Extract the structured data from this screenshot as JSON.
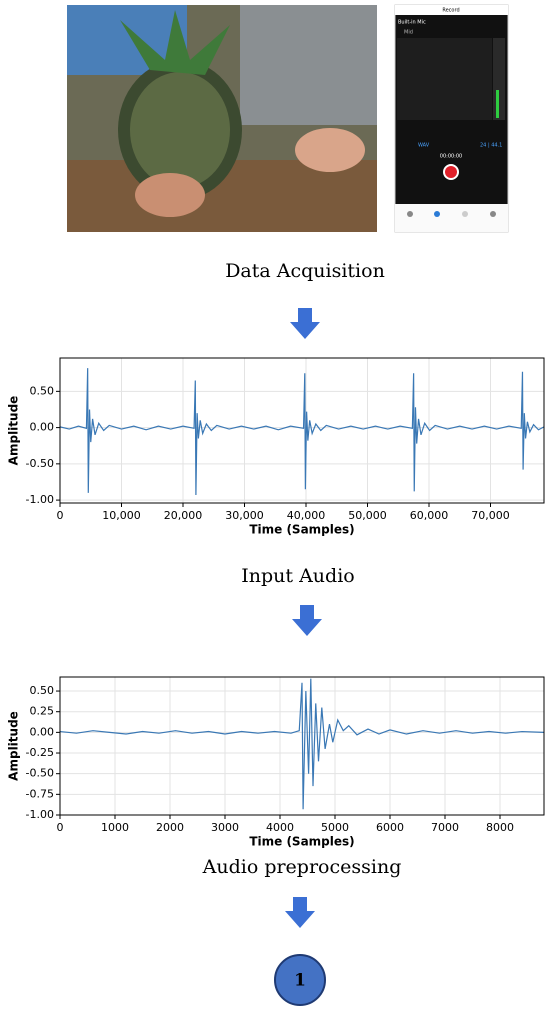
{
  "phone": {
    "title": "Record",
    "input": "Built-in Mic",
    "channel": "Mid",
    "format": "WAV",
    "rate": "24 | 44.1",
    "timer": "00:00:00"
  },
  "stages": [
    "Data Acquisition",
    "Input Audio",
    "Audio preprocessing"
  ],
  "step": "1",
  "chart_data": [
    {
      "type": "line",
      "xlabel": "Time (Samples)",
      "ylabel": "Amplitude",
      "grid": true,
      "xlim": [
        0,
        78700
      ],
      "ylim": [
        -1.04,
        0.96
      ],
      "xticks": [
        0,
        {
          "value": 10000,
          "label": "10,000"
        },
        {
          "value": 20000,
          "label": "20,000"
        },
        {
          "value": 30000,
          "label": "30,000"
        },
        {
          "value": 40000,
          "label": "40,000"
        },
        {
          "value": 50000,
          "label": "50,000"
        },
        {
          "value": 60000,
          "label": "60,000"
        },
        {
          "value": 70000,
          "label": "70,000"
        }
      ],
      "yticks": [
        {
          "value": -1,
          "label": "-1.00"
        },
        {
          "value": -0.5,
          "label": "-0.50"
        },
        {
          "value": 0,
          "label": "0.00"
        },
        {
          "value": 0.5,
          "label": "0.50"
        }
      ],
      "x": [
        0,
        1500,
        3000,
        4300,
        4500,
        4600,
        4800,
        5000,
        5300,
        5700,
        6300,
        7100,
        8000,
        10000,
        12000,
        14000,
        16000,
        18000,
        20000,
        21800,
        22000,
        22100,
        22300,
        22500,
        22800,
        23200,
        23800,
        24600,
        25500,
        27500,
        29500,
        31500,
        33500,
        35500,
        37500,
        39600,
        39800,
        39900,
        40100,
        40300,
        40600,
        41000,
        41600,
        42400,
        43300,
        45300,
        47300,
        49300,
        51300,
        53300,
        55300,
        57300,
        57500,
        57600,
        57800,
        58000,
        58300,
        58700,
        59300,
        60100,
        61000,
        63000,
        65000,
        67000,
        69000,
        71000,
        73000,
        75000,
        75200,
        75300,
        75500,
        75700,
        76000,
        76400,
        77000,
        77800,
        78700
      ],
      "series": [
        {
          "color": "#3a78b5",
          "values": [
            0.01,
            -0.02,
            0.02,
            -0.01,
            0.82,
            -0.9,
            0.25,
            -0.2,
            0.12,
            -0.1,
            0.06,
            -0.04,
            0.03,
            -0.02,
            0.02,
            -0.03,
            0.02,
            -0.02,
            0.02,
            -0.01,
            0.65,
            -0.93,
            0.2,
            -0.15,
            0.1,
            -0.08,
            0.05,
            -0.04,
            0.03,
            -0.02,
            0.02,
            -0.02,
            0.02,
            -0.03,
            0.02,
            -0.01,
            0.75,
            -0.85,
            0.22,
            -0.18,
            0.1,
            -0.08,
            0.05,
            -0.04,
            0.03,
            -0.02,
            0.02,
            -0.02,
            0.02,
            -0.02,
            0.02,
            -0.01,
            0.75,
            -0.88,
            0.28,
            -0.22,
            0.12,
            -0.1,
            0.06,
            -0.04,
            0.03,
            -0.02,
            0.02,
            -0.02,
            0.02,
            -0.02,
            0.02,
            -0.01,
            0.77,
            -0.58,
            0.2,
            -0.15,
            0.08,
            -0.06,
            0.04,
            -0.03,
            0.01
          ]
        }
      ]
    },
    {
      "type": "line",
      "xlabel": "Time (Samples)",
      "ylabel": "Amplitude",
      "grid": true,
      "xlim": [
        0,
        8800
      ],
      "ylim": [
        -1.0,
        0.67
      ],
      "xticks": [
        0,
        1000,
        2000,
        3000,
        4000,
        5000,
        6000,
        7000,
        8000
      ],
      "yticks": [
        {
          "value": -1,
          "label": "-1.00"
        },
        {
          "value": -0.75,
          "label": "-0.75"
        },
        {
          "value": -0.5,
          "label": "-0.50"
        },
        {
          "value": -0.25,
          "label": "-0.25"
        },
        {
          "value": 0,
          "label": "0.00"
        },
        {
          "value": 0.25,
          "label": "0.25"
        },
        {
          "value": 0.5,
          "label": "0.50"
        }
      ],
      "x": [
        0,
        300,
        600,
        900,
        1200,
        1500,
        1800,
        2100,
        2400,
        2700,
        3000,
        3300,
        3600,
        3900,
        4200,
        4350,
        4400,
        4420,
        4470,
        4520,
        4560,
        4600,
        4650,
        4700,
        4760,
        4820,
        4900,
        4960,
        5050,
        5150,
        5250,
        5400,
        5600,
        5800,
        6000,
        6300,
        6600,
        6900,
        7200,
        7500,
        7800,
        8100,
        8400,
        8800
      ],
      "series": [
        {
          "color": "#3a78b5",
          "values": [
            0.01,
            -0.01,
            0.02,
            0.0,
            -0.02,
            0.01,
            -0.01,
            0.02,
            -0.01,
            0.01,
            -0.02,
            0.01,
            -0.01,
            0.01,
            -0.01,
            0.02,
            0.6,
            -0.93,
            0.5,
            -0.5,
            0.65,
            -0.65,
            0.35,
            -0.35,
            0.3,
            -0.2,
            0.1,
            -0.12,
            0.15,
            0.02,
            0.08,
            -0.03,
            0.04,
            -0.02,
            0.03,
            -0.02,
            0.02,
            -0.01,
            0.02,
            -0.01,
            0.01,
            -0.01,
            0.01,
            0.0
          ]
        }
      ]
    }
  ]
}
